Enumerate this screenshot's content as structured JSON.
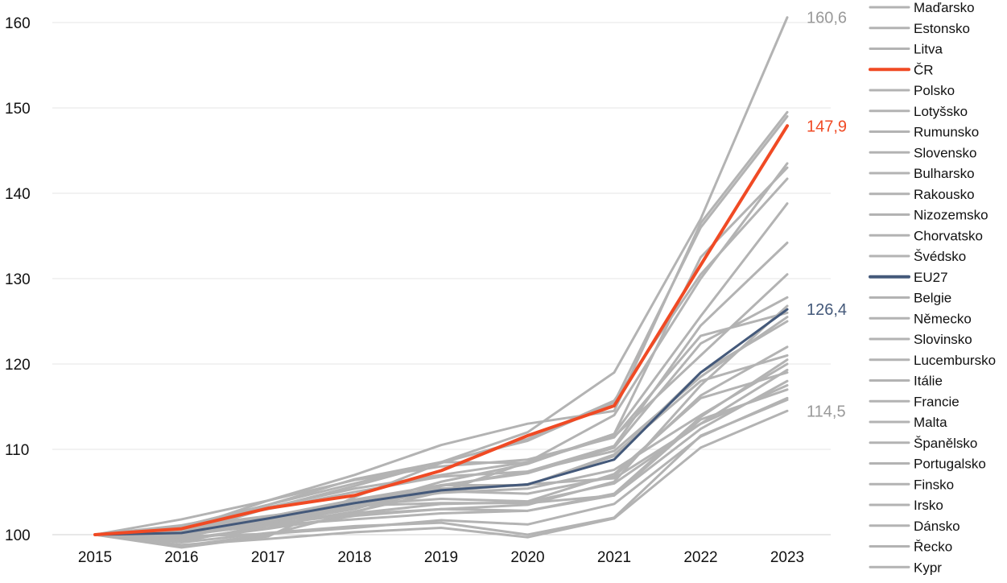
{
  "chart_data": {
    "type": "line",
    "title": "",
    "xlabel": "",
    "ylabel": "",
    "x": [
      "2015",
      "2016",
      "2017",
      "2018",
      "2019",
      "2020",
      "2021",
      "2022",
      "2023"
    ],
    "ylim": [
      100,
      160
    ],
    "y_ticks": [
      "100",
      "110",
      "120",
      "130",
      "140",
      "150",
      "160"
    ],
    "grid": "horizontal",
    "legend_placement": "right",
    "colors": {
      "other": "#b3b3b3",
      "highlight": "#f04a24",
      "eu27": "#44597a",
      "gridline": "#e6e6e6"
    },
    "end_labels": [
      {
        "text": "160,6",
        "value": 160.6,
        "color": "#999999"
      },
      {
        "text": "147,9",
        "value": 147.9,
        "color": "#f04a24"
      },
      {
        "text": "126,4",
        "value": 126.4,
        "color": "#44597a"
      },
      {
        "text": "114,5",
        "value": 114.5,
        "color": "#999999"
      }
    ],
    "series": [
      {
        "name": "Maďarsko",
        "highlight": "none",
        "values": [
          100,
          101.0,
          103.5,
          106.5,
          108.5,
          112.0,
          119.0,
          137.0,
          160.6
        ]
      },
      {
        "name": "Estonsko",
        "highlight": "none",
        "values": [
          100,
          100.6,
          104.0,
          107.0,
          110.5,
          113.0,
          114.5,
          136.5,
          149.5
        ]
      },
      {
        "name": "Litva",
        "highlight": "none",
        "values": [
          100,
          101.0,
          103.5,
          106.0,
          108.5,
          111.0,
          115.5,
          136.0,
          149.0
        ]
      },
      {
        "name": "ČR",
        "highlight": "cr",
        "values": [
          100,
          100.7,
          103.1,
          104.6,
          107.5,
          111.6,
          115.1,
          131.6,
          147.9
        ]
      },
      {
        "name": "Polsko",
        "highlight": "none",
        "values": [
          100,
          99.2,
          101.1,
          102.7,
          105.0,
          108.5,
          114.0,
          130.0,
          143.5
        ]
      },
      {
        "name": "Lotyšsko",
        "highlight": "none",
        "values": [
          100,
          100.1,
          103.1,
          105.7,
          108.5,
          108.4,
          111.8,
          132.5,
          143.0
        ]
      },
      {
        "name": "Rumunsko",
        "highlight": "none",
        "values": [
          100,
          98.5,
          99.8,
          104.4,
          108.4,
          111.2,
          115.7,
          130.5,
          141.7
        ]
      },
      {
        "name": "Slovensko",
        "highlight": "none",
        "values": [
          100,
          99.5,
          100.8,
          103.3,
          106.2,
          108.3,
          111.8,
          125.6,
          138.8
        ]
      },
      {
        "name": "Bulharsko",
        "highlight": "none",
        "values": [
          100,
          98.7,
          100.0,
          102.6,
          105.7,
          107.4,
          110.4,
          124.5,
          134.2
        ]
      },
      {
        "name": "Rakousko",
        "highlight": "none",
        "values": [
          100,
          101.0,
          103.2,
          105.4,
          107.0,
          108.5,
          111.5,
          121.0,
          130.5
        ]
      },
      {
        "name": "Nizozemsko",
        "highlight": "none",
        "values": [
          100,
          100.1,
          101.4,
          103.0,
          105.8,
          107.2,
          110.2,
          122.4,
          127.8
        ]
      },
      {
        "name": "Chorvatsko",
        "highlight": "none",
        "values": [
          100,
          99.4,
          100.7,
          102.2,
          103.0,
          103.5,
          106.2,
          117.5,
          126.8
        ]
      },
      {
        "name": "Švédsko",
        "highlight": "none",
        "values": [
          100,
          101.1,
          103.0,
          105.0,
          106.8,
          107.4,
          109.8,
          118.5,
          125.5
        ]
      },
      {
        "name": "EU27",
        "highlight": "eu",
        "values": [
          100,
          100.2,
          101.9,
          103.7,
          105.2,
          105.9,
          108.8,
          119.0,
          126.4
        ]
      },
      {
        "name": "Belgie",
        "highlight": "none",
        "values": [
          100,
          101.8,
          104.0,
          106.4,
          108.0,
          108.8,
          111.4,
          123.3,
          126.0
        ]
      },
      {
        "name": "Německo",
        "highlight": "none",
        "values": [
          100,
          100.4,
          102.1,
          104.0,
          105.4,
          105.8,
          109.2,
          119.0,
          125.0
        ]
      },
      {
        "name": "Slovinsko",
        "highlight": "none",
        "values": [
          100,
          99.9,
          101.3,
          103.3,
          105.1,
          104.8,
          106.8,
          116.3,
          122.0
        ]
      },
      {
        "name": "Lucembursko",
        "highlight": "none",
        "values": [
          100,
          100.0,
          102.1,
          104.1,
          105.8,
          105.8,
          109.4,
          118.0,
          121.0
        ]
      },
      {
        "name": "Itálie",
        "highlight": "none",
        "values": [
          100,
          99.9,
          101.2,
          102.4,
          103.0,
          102.8,
          104.8,
          113.8,
          120.5
        ]
      },
      {
        "name": "Francie",
        "highlight": "none",
        "values": [
          100,
          100.3,
          101.5,
          103.6,
          104.9,
          105.4,
          107.6,
          114.0,
          120.0
        ]
      },
      {
        "name": "Malta",
        "highlight": "none",
        "values": [
          100,
          100.9,
          102.2,
          103.4,
          105.1,
          105.9,
          106.6,
          113.0,
          119.3
        ]
      },
      {
        "name": "Španělsko",
        "highlight": "none",
        "values": [
          100,
          99.7,
          101.7,
          103.5,
          104.2,
          103.9,
          107.1,
          116.0,
          119.0
        ]
      },
      {
        "name": "Portugalsko",
        "highlight": "none",
        "values": [
          100,
          100.6,
          102.1,
          103.4,
          103.7,
          103.7,
          104.6,
          112.4,
          118.0
        ]
      },
      {
        "name": "Finsko",
        "highlight": "none",
        "values": [
          100,
          100.4,
          101.2,
          102.5,
          103.6,
          103.8,
          106.0,
          113.0,
          117.5
        ]
      },
      {
        "name": "Irsko",
        "highlight": "none",
        "values": [
          100,
          99.8,
          100.1,
          100.8,
          101.7,
          101.2,
          103.6,
          111.5,
          116.0
        ]
      },
      {
        "name": "Dánsko",
        "highlight": "none",
        "values": [
          100,
          100.0,
          101.1,
          101.8,
          102.5,
          102.8,
          104.6,
          113.5,
          117.0
        ]
      },
      {
        "name": "Řecko",
        "highlight": "none",
        "values": [
          100,
          99.1,
          100.2,
          101.0,
          101.4,
          100.0,
          102.0,
          111.6,
          115.8
        ]
      },
      {
        "name": "Kypr",
        "highlight": "none",
        "values": [
          100,
          98.8,
          99.5,
          100.3,
          100.8,
          99.7,
          101.9,
          110.2,
          114.5
        ]
      }
    ]
  }
}
